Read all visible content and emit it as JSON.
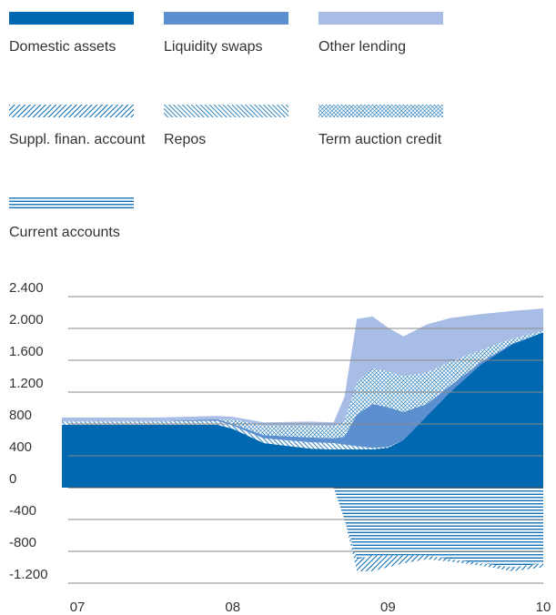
{
  "chart_data": {
    "type": "area",
    "x": [
      2006.9,
      2007.5,
      2007.9,
      2008.0,
      2008.2,
      2008.5,
      2008.65,
      2008.72,
      2008.8,
      2008.9,
      2009.0,
      2009.1,
      2009.25,
      2009.4,
      2009.6,
      2009.8,
      2010.0
    ],
    "series": [
      {
        "name": "Domestic assets",
        "color": "#0067b1",
        "pattern": "solid",
        "values": [
          790,
          790,
          790,
          740,
          560,
          490,
          480,
          480,
          480,
          480,
          500,
          600,
          900,
          1200,
          1550,
          1800,
          1950
        ]
      },
      {
        "name": "Liquidity swaps",
        "color": "#5b8fd0",
        "pattern": "solid",
        "values": [
          0,
          0,
          20,
          20,
          40,
          60,
          60,
          100,
          400,
          550,
          500,
          350,
          150,
          80,
          30,
          10,
          0
        ]
      },
      {
        "name": "Other lending",
        "color": "#a8bde5",
        "pattern": "solid",
        "values": [
          50,
          50,
          40,
          30,
          40,
          50,
          50,
          300,
          800,
          650,
          550,
          500,
          600,
          550,
          450,
          350,
          280
        ]
      },
      {
        "name": "Suppl. finan. account",
        "color": "#0067b1",
        "pattern": "diagonal-up",
        "values": [
          0,
          0,
          0,
          0,
          0,
          0,
          0,
          0,
          -150,
          -200,
          -150,
          -100,
          -50,
          -30,
          -30,
          -50,
          -50
        ]
      },
      {
        "name": "Repos",
        "color": "#0067b1",
        "pattern": "diagonal-down",
        "values": [
          40,
          40,
          50,
          40,
          60,
          80,
          80,
          60,
          40,
          20,
          10,
          0,
          0,
          0,
          0,
          0,
          0
        ]
      },
      {
        "name": "Term auction credit",
        "color": "#0067b1",
        "pattern": "crosshatch",
        "values": [
          0,
          0,
          0,
          60,
          120,
          150,
          150,
          200,
          400,
          450,
          450,
          450,
          400,
          300,
          150,
          60,
          20
        ]
      },
      {
        "name": "Current accounts",
        "color": "#0067b1",
        "pattern": "horizontal",
        "values": [
          0,
          0,
          0,
          0,
          0,
          0,
          0,
          -400,
          -900,
          -850,
          -850,
          -850,
          -850,
          -900,
          -950,
          -1000,
          -950
        ]
      }
    ],
    "xlim": [
      2006.9,
      2010.0
    ],
    "xticks": [
      {
        "value": 2007,
        "label": "07"
      },
      {
        "value": 2008,
        "label": "08"
      },
      {
        "value": 2009,
        "label": "09"
      },
      {
        "value": 2010,
        "label": "10"
      }
    ],
    "ylim": [
      -1300,
      2500
    ],
    "yticks": [
      {
        "value": 2400,
        "label": "2.400"
      },
      {
        "value": 2000,
        "label": "2.000"
      },
      {
        "value": 1600,
        "label": "1.600"
      },
      {
        "value": 1200,
        "label": "1.200"
      },
      800,
      400,
      0,
      -400,
      -800,
      {
        "value": -1200,
        "label": "-1.200"
      }
    ],
    "grid": true
  }
}
